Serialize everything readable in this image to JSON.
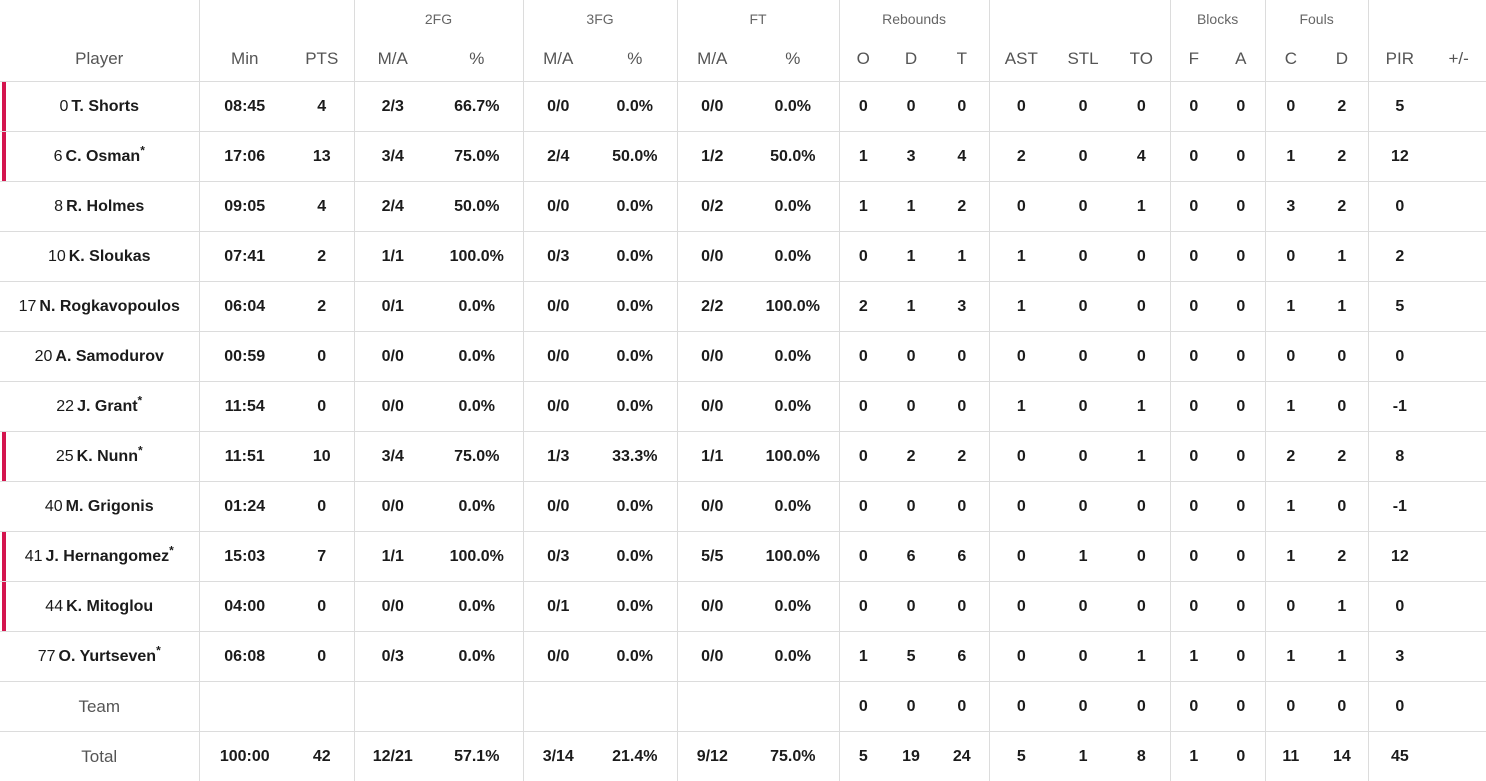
{
  "headers": {
    "groups": {
      "fg2": "2FG",
      "fg3": "3FG",
      "ft": "FT",
      "reb": "Rebounds",
      "blk": "Blocks",
      "fouls": "Fouls"
    },
    "player": "Player",
    "min": "Min",
    "pts": "PTS",
    "fg2_ma": "M/A",
    "fg2_pct": "%",
    "fg3_ma": "M/A",
    "fg3_pct": "%",
    "ft_ma": "M/A",
    "ft_pct": "%",
    "reb_o": "O",
    "reb_d": "D",
    "reb_t": "T",
    "ast": "AST",
    "stl": "STL",
    "to": "TO",
    "blk_f": "F",
    "blk_a": "A",
    "fouls_c": "C",
    "fouls_d": "D",
    "pir": "PIR",
    "pm": "+/-"
  },
  "starter_color": "#d4154e",
  "players": [
    {
      "num": "0",
      "name": "T. Shorts",
      "mark": "",
      "starter": true,
      "min": "08:45",
      "pts": "4",
      "fg2_ma": "2/3",
      "fg2_pct": "66.7%",
      "fg3_ma": "0/0",
      "fg3_pct": "0.0%",
      "ft_ma": "0/0",
      "ft_pct": "0.0%",
      "o": "0",
      "d": "0",
      "t": "0",
      "ast": "0",
      "stl": "0",
      "to": "0",
      "bf": "0",
      "ba": "0",
      "fc": "0",
      "fd": "2",
      "pir": "5",
      "pm": ""
    },
    {
      "num": "6",
      "name": "C. Osman",
      "mark": "*",
      "starter": true,
      "min": "17:06",
      "pts": "13",
      "fg2_ma": "3/4",
      "fg2_pct": "75.0%",
      "fg3_ma": "2/4",
      "fg3_pct": "50.0%",
      "ft_ma": "1/2",
      "ft_pct": "50.0%",
      "o": "1",
      "d": "3",
      "t": "4",
      "ast": "2",
      "stl": "0",
      "to": "4",
      "bf": "0",
      "ba": "0",
      "fc": "1",
      "fd": "2",
      "pir": "12",
      "pm": ""
    },
    {
      "num": "8",
      "name": "R. Holmes",
      "mark": "",
      "starter": false,
      "min": "09:05",
      "pts": "4",
      "fg2_ma": "2/4",
      "fg2_pct": "50.0%",
      "fg3_ma": "0/0",
      "fg3_pct": "0.0%",
      "ft_ma": "0/2",
      "ft_pct": "0.0%",
      "o": "1",
      "d": "1",
      "t": "2",
      "ast": "0",
      "stl": "0",
      "to": "1",
      "bf": "0",
      "ba": "0",
      "fc": "3",
      "fd": "2",
      "pir": "0",
      "pm": ""
    },
    {
      "num": "10",
      "name": "K. Sloukas",
      "mark": "",
      "starter": false,
      "min": "07:41",
      "pts": "2",
      "fg2_ma": "1/1",
      "fg2_pct": "100.0%",
      "fg3_ma": "0/3",
      "fg3_pct": "0.0%",
      "ft_ma": "0/0",
      "ft_pct": "0.0%",
      "o": "0",
      "d": "1",
      "t": "1",
      "ast": "1",
      "stl": "0",
      "to": "0",
      "bf": "0",
      "ba": "0",
      "fc": "0",
      "fd": "1",
      "pir": "2",
      "pm": ""
    },
    {
      "num": "17",
      "name": "N. Rogkavopoulos",
      "mark": "",
      "starter": false,
      "min": "06:04",
      "pts": "2",
      "fg2_ma": "0/1",
      "fg2_pct": "0.0%",
      "fg3_ma": "0/0",
      "fg3_pct": "0.0%",
      "ft_ma": "2/2",
      "ft_pct": "100.0%",
      "o": "2",
      "d": "1",
      "t": "3",
      "ast": "1",
      "stl": "0",
      "to": "0",
      "bf": "0",
      "ba": "0",
      "fc": "1",
      "fd": "1",
      "pir": "5",
      "pm": ""
    },
    {
      "num": "20",
      "name": "A. Samodurov",
      "mark": "",
      "starter": false,
      "min": "00:59",
      "pts": "0",
      "fg2_ma": "0/0",
      "fg2_pct": "0.0%",
      "fg3_ma": "0/0",
      "fg3_pct": "0.0%",
      "ft_ma": "0/0",
      "ft_pct": "0.0%",
      "o": "0",
      "d": "0",
      "t": "0",
      "ast": "0",
      "stl": "0",
      "to": "0",
      "bf": "0",
      "ba": "0",
      "fc": "0",
      "fd": "0",
      "pir": "0",
      "pm": ""
    },
    {
      "num": "22",
      "name": "J. Grant",
      "mark": "*",
      "starter": false,
      "min": "11:54",
      "pts": "0",
      "fg2_ma": "0/0",
      "fg2_pct": "0.0%",
      "fg3_ma": "0/0",
      "fg3_pct": "0.0%",
      "ft_ma": "0/0",
      "ft_pct": "0.0%",
      "o": "0",
      "d": "0",
      "t": "0",
      "ast": "1",
      "stl": "0",
      "to": "1",
      "bf": "0",
      "ba": "0",
      "fc": "1",
      "fd": "0",
      "pir": "-1",
      "pm": ""
    },
    {
      "num": "25",
      "name": "K. Nunn",
      "mark": "*",
      "starter": true,
      "min": "11:51",
      "pts": "10",
      "fg2_ma": "3/4",
      "fg2_pct": "75.0%",
      "fg3_ma": "1/3",
      "fg3_pct": "33.3%",
      "ft_ma": "1/1",
      "ft_pct": "100.0%",
      "o": "0",
      "d": "2",
      "t": "2",
      "ast": "0",
      "stl": "0",
      "to": "1",
      "bf": "0",
      "ba": "0",
      "fc": "2",
      "fd": "2",
      "pir": "8",
      "pm": ""
    },
    {
      "num": "40",
      "name": "M. Grigonis",
      "mark": "",
      "starter": false,
      "min": "01:24",
      "pts": "0",
      "fg2_ma": "0/0",
      "fg2_pct": "0.0%",
      "fg3_ma": "0/0",
      "fg3_pct": "0.0%",
      "ft_ma": "0/0",
      "ft_pct": "0.0%",
      "o": "0",
      "d": "0",
      "t": "0",
      "ast": "0",
      "stl": "0",
      "to": "0",
      "bf": "0",
      "ba": "0",
      "fc": "1",
      "fd": "0",
      "pir": "-1",
      "pm": ""
    },
    {
      "num": "41",
      "name": "J. Hernangomez",
      "mark": "*",
      "starter": true,
      "min": "15:03",
      "pts": "7",
      "fg2_ma": "1/1",
      "fg2_pct": "100.0%",
      "fg3_ma": "0/3",
      "fg3_pct": "0.0%",
      "ft_ma": "5/5",
      "ft_pct": "100.0%",
      "o": "0",
      "d": "6",
      "t": "6",
      "ast": "0",
      "stl": "1",
      "to": "0",
      "bf": "0",
      "ba": "0",
      "fc": "1",
      "fd": "2",
      "pir": "12",
      "pm": ""
    },
    {
      "num": "44",
      "name": "K. Mitoglou",
      "mark": "",
      "starter": true,
      "min": "04:00",
      "pts": "0",
      "fg2_ma": "0/0",
      "fg2_pct": "0.0%",
      "fg3_ma": "0/1",
      "fg3_pct": "0.0%",
      "ft_ma": "0/0",
      "ft_pct": "0.0%",
      "o": "0",
      "d": "0",
      "t": "0",
      "ast": "0",
      "stl": "0",
      "to": "0",
      "bf": "0",
      "ba": "0",
      "fc": "0",
      "fd": "1",
      "pir": "0",
      "pm": ""
    },
    {
      "num": "77",
      "name": "O. Yurtseven",
      "mark": "*",
      "starter": false,
      "min": "06:08",
      "pts": "0",
      "fg2_ma": "0/3",
      "fg2_pct": "0.0%",
      "fg3_ma": "0/0",
      "fg3_pct": "0.0%",
      "ft_ma": "0/0",
      "ft_pct": "0.0%",
      "o": "1",
      "d": "5",
      "t": "6",
      "ast": "0",
      "stl": "0",
      "to": "1",
      "bf": "1",
      "ba": "0",
      "fc": "1",
      "fd": "1",
      "pir": "3",
      "pm": ""
    }
  ],
  "team": {
    "label": "Team",
    "min": "",
    "pts": "",
    "fg2_ma": "",
    "fg2_pct": "",
    "fg3_ma": "",
    "fg3_pct": "",
    "ft_ma": "",
    "ft_pct": "",
    "o": "0",
    "d": "0",
    "t": "0",
    "ast": "0",
    "stl": "0",
    "to": "0",
    "bf": "0",
    "ba": "0",
    "fc": "0",
    "fd": "0",
    "pir": "0",
    "pm": ""
  },
  "total": {
    "label": "Total",
    "min": "100:00",
    "pts": "42",
    "fg2_ma": "12/21",
    "fg2_pct": "57.1%",
    "fg3_ma": "3/14",
    "fg3_pct": "21.4%",
    "ft_ma": "9/12",
    "ft_pct": "75.0%",
    "o": "5",
    "d": "19",
    "t": "24",
    "ast": "5",
    "stl": "1",
    "to": "8",
    "bf": "1",
    "ba": "0",
    "fc": "11",
    "fd": "14",
    "pir": "45",
    "pm": ""
  }
}
